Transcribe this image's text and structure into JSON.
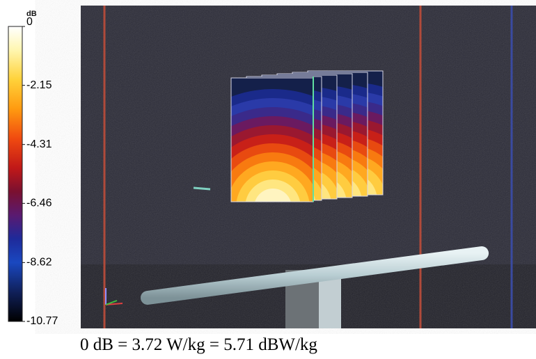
{
  "colorbar": {
    "unit": "dB",
    "ticks": [
      0,
      -2.15,
      -4.31,
      -6.46,
      -8.62,
      -10.77
    ]
  },
  "caption": "0 dB = 3.72 W/kg = 5.71 dBW/kg"
}
